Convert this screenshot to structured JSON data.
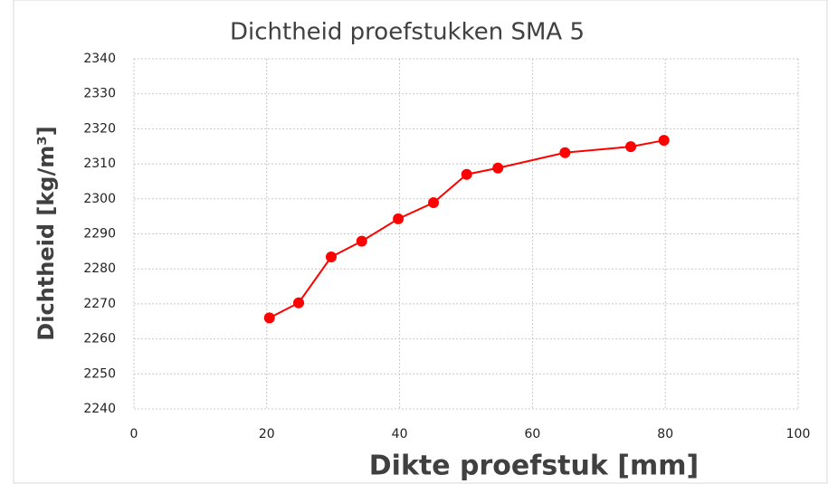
{
  "chart_data": {
    "type": "line",
    "title": "Dichtheid proefstukken SMA 5",
    "x_label": "Dikte proefstuk [mm]",
    "y_label": "Dichtheid [kg/m³]",
    "x": [
      20.4,
      24.8,
      29.7,
      34.3,
      39.8,
      45.1,
      50.1,
      54.8,
      64.9,
      74.8,
      79.8
    ],
    "series": [
      {
        "name": "Dichtheid",
        "color": "#ff0000",
        "values": [
          2266,
          2270.3,
          2283.4,
          2287.9,
          2294.3,
          2298.9,
          2307,
          2308.8,
          2313.2,
          2314.9,
          2316.7
        ]
      }
    ],
    "xlim": [
      0,
      100
    ],
    "xticks": [
      0,
      20,
      40,
      60,
      80,
      100
    ],
    "ylim": [
      2240,
      2340
    ],
    "yticks": [
      2240,
      2250,
      2260,
      2270,
      2280,
      2290,
      2300,
      2310,
      2320,
      2330,
      2340
    ],
    "grid": true
  }
}
